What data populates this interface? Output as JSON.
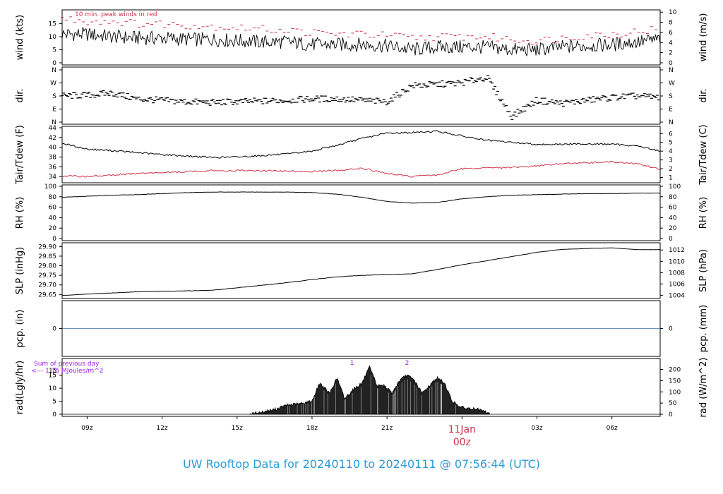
{
  "footer_title": "UW Rooftop Data for 20240110  to  20240111 @ 07:56:44  (UTC)",
  "colors": {
    "black": "#000000",
    "red": "#d0304a",
    "blue": "#3a6fb0",
    "purple": "#a020f0",
    "footer": "#2a9ad6"
  },
  "x_axis": {
    "ticks": [
      "09z",
      "12z",
      "15z",
      "18z",
      "21z",
      "00z",
      "03z",
      "06z"
    ],
    "tick_hours": [
      9,
      12,
      15,
      18,
      21,
      24,
      27,
      30
    ],
    "range_hours": [
      8.0,
      31.93
    ],
    "day_label": "11Jan",
    "day_label_hour": 24,
    "day_sub": "00z"
  },
  "chart_data": [
    {
      "type": "line",
      "panel": "wind",
      "ylabel": "wind (kts)",
      "ylabel_right": "wind (m/s)",
      "yticks_left": [
        "0",
        "5",
        "10",
        "15"
      ],
      "ytick_values_left": [
        0,
        5,
        10,
        15
      ],
      "yticks_right": [
        "0",
        "2",
        "4",
        "6",
        "8",
        "10"
      ],
      "ytick_values_right_in_kts": [
        0,
        3.89,
        7.78,
        11.66,
        15.55,
        19.44
      ],
      "ylim": [
        0,
        19.5
      ],
      "annotation": "10 min. peak winds in red",
      "series": [
        {
          "name": "wind",
          "color": "#000000",
          "x": [
            8.0,
            9,
            10,
            11,
            12,
            13,
            14,
            15,
            16,
            17,
            18,
            19,
            20,
            21,
            22,
            23,
            24,
            25,
            26,
            27,
            28,
            29,
            30,
            31,
            31.93
          ],
          "y": [
            11,
            11,
            10,
            9.5,
            9.5,
            9,
            9,
            8.5,
            8,
            8,
            7,
            7,
            7,
            6.5,
            5,
            6,
            6,
            6,
            5,
            5,
            6,
            6.5,
            7,
            8,
            9
          ]
        },
        {
          "name": "peak",
          "color": "#d0304a",
          "x": [
            8.0,
            9,
            10,
            11,
            12,
            13,
            14,
            15,
            16,
            17,
            18,
            19,
            20,
            21,
            22,
            23,
            24,
            25,
            26,
            27,
            28,
            29,
            30,
            31,
            31.93
          ],
          "y": [
            17,
            16,
            16,
            15,
            15,
            14.5,
            14,
            13.5,
            13,
            12.5,
            11.5,
            11,
            11,
            10.5,
            9.5,
            10,
            10,
            10,
            9,
            8.5,
            9.5,
            10.5,
            11,
            12,
            13
          ]
        }
      ]
    },
    {
      "type": "scatter",
      "panel": "dir",
      "ylabel": "dir.",
      "ylabel_right": "dir.",
      "yticks": [
        "N",
        "E",
        "S",
        "W",
        "N"
      ],
      "ytick_values": [
        0,
        90,
        180,
        270,
        360
      ],
      "ylim": [
        0,
        360
      ],
      "series": [
        {
          "name": "dir",
          "color": "#000000",
          "x": [
            8.0,
            9,
            10,
            11,
            12,
            13,
            14,
            15,
            16,
            17,
            18,
            19,
            20,
            21,
            22,
            23,
            24,
            25,
            26,
            27,
            28,
            29,
            30,
            31,
            31.93
          ],
          "y": [
            180,
            185,
            200,
            160,
            150,
            140,
            135,
            140,
            145,
            150,
            160,
            160,
            150,
            140,
            250,
            260,
            270,
            310,
            40,
            150,
            130,
            150,
            170,
            180,
            170
          ]
        }
      ]
    },
    {
      "type": "line",
      "panel": "temp",
      "ylabel": "Tair/Tdew (F)",
      "ylabel_right": "Tair/Tdew (C)",
      "yticks_left": [
        "34",
        "36",
        "38",
        "40",
        "42",
        "44"
      ],
      "ytick_values_left": [
        34,
        36,
        38,
        40,
        42,
        44
      ],
      "yticks_right": [
        "1",
        "2",
        "3",
        "4",
        "5",
        "6"
      ],
      "ytick_values_right_in_F": [
        33.8,
        35.6,
        37.4,
        39.2,
        41,
        42.8
      ],
      "ylim": [
        33,
        44
      ],
      "series": [
        {
          "name": "Tair",
          "color": "#000000",
          "x": [
            8.0,
            9,
            10,
            11,
            12,
            13,
            14,
            15,
            16,
            17,
            18,
            19,
            20,
            21,
            22,
            23,
            24,
            25,
            26,
            27,
            28,
            29,
            30,
            31,
            31.93
          ],
          "y": [
            40.8,
            39.6,
            39.3,
            38.9,
            38.5,
            38.2,
            37.9,
            38,
            38.3,
            38.6,
            39.2,
            40.4,
            41.8,
            42.9,
            43,
            43.3,
            42.3,
            41.4,
            41,
            40.6,
            40.6,
            40.7,
            40.6,
            40.3,
            39.2
          ]
        },
        {
          "name": "Tdew",
          "color": "#d0304a",
          "x": [
            8.0,
            9,
            10,
            11,
            12,
            13,
            14,
            15,
            16,
            17,
            18,
            19,
            20,
            21,
            22,
            23,
            24,
            25,
            26,
            27,
            28,
            29,
            30,
            31,
            31.93
          ],
          "y": [
            34.1,
            34,
            34.3,
            34.6,
            34.8,
            35,
            35.2,
            35.2,
            35.2,
            35.1,
            35,
            35.2,
            35.7,
            34.6,
            34,
            34.3,
            35.6,
            35.8,
            35.8,
            36.2,
            36.6,
            36.8,
            37,
            36.6,
            35.5
          ]
        }
      ]
    },
    {
      "type": "line",
      "panel": "rh",
      "ylabel": "RH (%)",
      "ylabel_right": "RH (%)",
      "yticks": [
        "0",
        "20",
        "40",
        "60",
        "80",
        "100"
      ],
      "ytick_values": [
        0,
        20,
        40,
        60,
        80,
        100
      ],
      "ylim": [
        0,
        100
      ],
      "series": [
        {
          "name": "RH",
          "color": "#000000",
          "x": [
            8.0,
            9,
            10,
            11,
            12,
            13,
            14,
            15,
            16,
            17,
            18,
            19,
            20,
            21,
            22,
            23,
            24,
            25,
            26,
            27,
            28,
            29,
            30,
            31,
            31.93
          ],
          "y": [
            79,
            81,
            83,
            84,
            86,
            88,
            89,
            89,
            89,
            89,
            88,
            85,
            79,
            71,
            68,
            69,
            76,
            80,
            83,
            84,
            85,
            86,
            86,
            87,
            87
          ]
        }
      ]
    },
    {
      "type": "line",
      "panel": "slp",
      "ylabel": "SLP (inHg)",
      "ylabel_right": "SLP (hPa)",
      "yticks_left": [
        "29.65",
        "29.70",
        "29.75",
        "29.80",
        "29.85",
        "29.90"
      ],
      "ytick_values_left": [
        29.65,
        29.7,
        29.75,
        29.8,
        29.85,
        29.9
      ],
      "yticks_right": [
        "1004",
        "1006",
        "1008",
        "1010",
        "1012"
      ],
      "ytick_values_right_in_inHg": [
        29.646,
        29.705,
        29.764,
        29.823,
        29.882
      ],
      "ylim": [
        29.64,
        29.905
      ],
      "series": [
        {
          "name": "SLP",
          "color": "#000000",
          "x": [
            8.0,
            9,
            10,
            11,
            12,
            13,
            14,
            15,
            16,
            17,
            18,
            19,
            20,
            21,
            22,
            23,
            24,
            25,
            26,
            27,
            28,
            29,
            30,
            31,
            31.93
          ],
          "y": [
            29.645,
            29.652,
            29.658,
            29.664,
            29.667,
            29.669,
            29.672,
            29.685,
            29.698,
            29.712,
            29.728,
            29.742,
            29.75,
            29.754,
            29.758,
            29.78,
            29.805,
            29.826,
            29.848,
            29.87,
            29.885,
            29.89,
            29.893,
            29.884,
            29.884
          ]
        }
      ]
    },
    {
      "type": "line",
      "panel": "pcp",
      "ylabel": "pcp. (in)",
      "ylabel_right": "pcp. (mm)",
      "yticks_left": [
        "0"
      ],
      "yticks_right": [
        "0"
      ],
      "ytick_values": [
        0
      ],
      "ylim": [
        -1,
        1
      ],
      "series": [
        {
          "name": "pcp",
          "color": "#3a6fb0",
          "x": [
            8.0,
            31.93
          ],
          "y": [
            0,
            0
          ]
        }
      ]
    },
    {
      "type": "area",
      "panel": "rad",
      "ylabel": "rad(Lgly/hr)",
      "ylabel_right": "rad (W/m^2)",
      "yticks_left": [
        "0",
        "5",
        "10",
        "15"
      ],
      "ytick_values_left": [
        0,
        5,
        10,
        15
      ],
      "yticks_right": [
        "0",
        "50",
        "100",
        "150",
        "200"
      ],
      "ytick_values_right_in_Lgly": [
        0,
        4.3,
        8.6,
        12.9,
        17.2
      ],
      "ylim": [
        0,
        20.6
      ],
      "annotation_sum": "Sum of previous day",
      "annotation_value": "<--- 1.75 MJoules/m^2",
      "annotation_left_value": "15",
      "markers": [
        {
          "label": "1",
          "x": 19.6
        },
        {
          "label": "2",
          "x": 21.8
        }
      ],
      "series": [
        {
          "name": "rad",
          "color": "#000000",
          "x": [
            15.5,
            16,
            16.5,
            17,
            17.5,
            18,
            18.3,
            18.7,
            19,
            19.3,
            19.7,
            20,
            20.3,
            20.6,
            20.9,
            21.2,
            21.5,
            21.8,
            22.1,
            22.4,
            22.7,
            23,
            23.3,
            23.6,
            24,
            24.5,
            25,
            25.1
          ],
          "y": [
            0,
            0.8,
            1.8,
            3.5,
            4,
            5,
            12,
            8,
            14,
            6,
            10,
            12,
            18,
            11,
            11,
            8,
            13,
            15,
            13,
            8,
            11,
            14,
            12,
            5,
            2.5,
            2,
            0.8,
            0
          ]
        }
      ]
    }
  ]
}
